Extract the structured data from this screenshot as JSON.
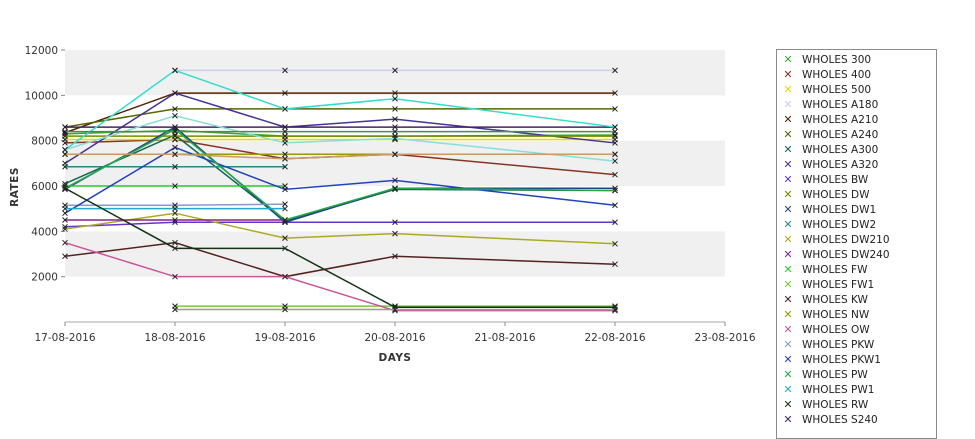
{
  "chart_data": {
    "type": "line",
    "title": "",
    "xlabel": "DAYS",
    "ylabel": "RATES",
    "ylim": [
      0,
      12000
    ],
    "y_ticks": [
      "2000",
      "4000",
      "6000",
      "8000",
      "10000",
      "12000"
    ],
    "x_ticks": [
      "17-08-2016",
      "18-08-2016",
      "19-08-2016",
      "20-08-2016",
      "21-08-2016",
      "22-08-2016",
      "23-08-2016"
    ],
    "x": [
      "17-08-2016",
      "18-08-2016",
      "19-08-2016",
      "20-08-2016",
      "22-08-2016"
    ],
    "grid": true,
    "legend_position": "right",
    "series": [
      {
        "name": "WHOLES 300",
        "color": "#33aa33",
        "values": [
          8300,
          8450,
          8200,
          8200,
          8250
        ]
      },
      {
        "name": "WHOLES 400",
        "color": "#883322",
        "values": [
          7900,
          8050,
          7200,
          7400,
          6500
        ]
      },
      {
        "name": "WHOLES 500",
        "color": "#dddd00",
        "values": [
          8050,
          8050,
          8050,
          8050,
          8050
        ]
      },
      {
        "name": "WHOLES A180",
        "color": "#ccccee",
        "values": [
          null,
          11100,
          11100,
          11100,
          11100
        ]
      },
      {
        "name": "WHOLES A210",
        "color": "#552200",
        "values": [
          8350,
          10100,
          10100,
          10100,
          10100
        ]
      },
      {
        "name": "WHOLES A240",
        "color": "#556600",
        "values": [
          8600,
          9400,
          9400,
          9400,
          9400
        ]
      },
      {
        "name": "WHOLES A300",
        "color": "#116655",
        "values": [
          6100,
          8250,
          4450,
          5850,
          5800
        ]
      },
      {
        "name": "WHOLES A320",
        "color": "#443399",
        "values": [
          7000,
          10100,
          8600,
          8950,
          7900
        ]
      },
      {
        "name": "WHOLES BW",
        "color": "#6633cc",
        "values": [
          4200,
          4400,
          4400,
          4400,
          4400
        ]
      },
      {
        "name": "WHOLES DW",
        "color": "#778800",
        "values": [
          8200,
          8200,
          8200,
          8200,
          8200
        ]
      },
      {
        "name": "WHOLES DW1",
        "color": "#224488",
        "values": [
          5850,
          8600,
          4400,
          5900,
          5900
        ]
      },
      {
        "name": "WHOLES DW2",
        "color": "#228888",
        "values": [
          6850,
          6850,
          6850,
          null,
          null
        ]
      },
      {
        "name": "WHOLES DW210",
        "color": "#aaaa22",
        "values": [
          4100,
          4800,
          3700,
          3900,
          3450
        ]
      },
      {
        "name": "WHOLES DW240",
        "color": "#882288",
        "values": [
          4500,
          4500,
          4500,
          null,
          null
        ]
      },
      {
        "name": "WHOLES FW",
        "color": "#22cc22",
        "values": [
          6000,
          6000,
          6000,
          null,
          null
        ]
      },
      {
        "name": "WHOLES FW1",
        "color": "#77cc33",
        "values": [
          null,
          700,
          700,
          700,
          700
        ]
      },
      {
        "name": "WHOLES KW",
        "color": "#552222",
        "values": [
          2900,
          3500,
          2000,
          2900,
          2550
        ]
      },
      {
        "name": "WHOLES NW",
        "color": "#999900",
        "values": [
          7400,
          7400,
          7400,
          7400,
          7400
        ]
      },
      {
        "name": "WHOLES OW",
        "color": "#cc5599",
        "values": [
          3500,
          2000,
          2000,
          500,
          500
        ]
      },
      {
        "name": "WHOLES PKW",
        "color": "#8899cc",
        "values": [
          5150,
          5150,
          5200,
          null,
          null
        ]
      },
      {
        "name": "WHOLES PKW1",
        "color": "#2244bb",
        "values": [
          4800,
          7700,
          5850,
          6250,
          5150
        ]
      },
      {
        "name": "WHOLES PW",
        "color": "#22aa44",
        "values": [
          5900,
          8500,
          4500,
          5900,
          5800
        ]
      },
      {
        "name": "WHOLES PW1",
        "color": "#22aacc",
        "values": [
          5000,
          5000,
          5000,
          null,
          null
        ]
      },
      {
        "name": "WHOLES RW",
        "color": "#113311",
        "values": [
          5900,
          3250,
          3250,
          650,
          650
        ]
      },
      {
        "name": "WHOLES S240",
        "color": "#442266",
        "values": [
          8600,
          8600,
          8600,
          8600,
          8600
        ]
      },
      {
        "name": "",
        "color": "#33ddcc",
        "values": [
          7600,
          11100,
          9400,
          9850,
          8600
        ]
      },
      {
        "name": "",
        "color": "#88dddd",
        "values": [
          7600,
          9100,
          7900,
          8100,
          7100
        ]
      },
      {
        "name": "",
        "color": "#cc9966",
        "values": [
          7400,
          7400,
          7200,
          7400,
          7400
        ]
      },
      {
        "name": "",
        "color": "#558844",
        "values": [
          8400,
          8400,
          8400,
          8400,
          8400
        ]
      },
      {
        "name": "",
        "color": "#999999",
        "values": [
          null,
          550,
          550,
          550,
          550
        ]
      }
    ]
  }
}
